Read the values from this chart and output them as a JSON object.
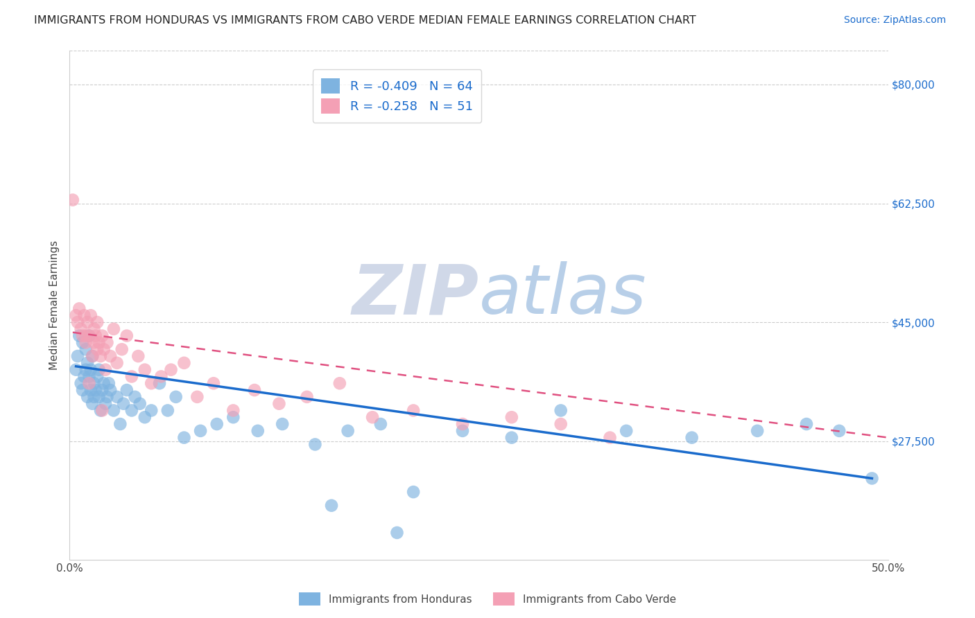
{
  "title": "IMMIGRANTS FROM HONDURAS VS IMMIGRANTS FROM CABO VERDE MEDIAN FEMALE EARNINGS CORRELATION CHART",
  "source": "Source: ZipAtlas.com",
  "xlabel": "",
  "ylabel": "Median Female Earnings",
  "xlim": [
    0.0,
    0.5
  ],
  "ylim": [
    10000,
    85000
  ],
  "yticks": [
    27500,
    45000,
    62500,
    80000
  ],
  "ytick_labels": [
    "$27,500",
    "$45,000",
    "$62,500",
    "$80,000"
  ],
  "xticks": [
    0.0,
    0.1,
    0.2,
    0.3,
    0.4,
    0.5
  ],
  "xtick_labels": [
    "0.0%",
    "",
    "",
    "",
    "",
    "50.0%"
  ],
  "legend_r_honduras": "-0.409",
  "legend_n_honduras": "64",
  "legend_r_caboverde": "-0.258",
  "legend_n_caboverde": "51",
  "legend_label_honduras": "Immigrants from Honduras",
  "legend_label_caboverde": "Immigrants from Cabo Verde",
  "color_honduras": "#7eb3e0",
  "color_caboverde": "#f4a0b5",
  "line_color_honduras": "#1a6bcc",
  "line_color_caboverde": "#e05080",
  "background_color": "#ffffff",
  "grid_color": "#cccccc",
  "watermark_zip": "ZIP",
  "watermark_atlas": "atlas",
  "watermark_color": "#c8ddf0",
  "title_color": "#222222",
  "source_color": "#1a6bcc",
  "axis_label_color": "#444444",
  "ytick_color": "#1a6bcc",
  "honduras_x": [
    0.004,
    0.005,
    0.006,
    0.007,
    0.008,
    0.008,
    0.009,
    0.01,
    0.01,
    0.011,
    0.011,
    0.012,
    0.012,
    0.013,
    0.013,
    0.014,
    0.014,
    0.015,
    0.015,
    0.016,
    0.017,
    0.018,
    0.018,
    0.019,
    0.02,
    0.021,
    0.022,
    0.023,
    0.024,
    0.025,
    0.027,
    0.029,
    0.031,
    0.033,
    0.035,
    0.038,
    0.04,
    0.043,
    0.046,
    0.05,
    0.055,
    0.06,
    0.065,
    0.07,
    0.08,
    0.09,
    0.1,
    0.115,
    0.13,
    0.15,
    0.17,
    0.19,
    0.21,
    0.24,
    0.27,
    0.3,
    0.34,
    0.38,
    0.42,
    0.45,
    0.47,
    0.49,
    0.2,
    0.16
  ],
  "honduras_y": [
    38000,
    40000,
    43000,
    36000,
    42000,
    35000,
    37000,
    41000,
    38000,
    39000,
    34000,
    43000,
    37000,
    35000,
    38000,
    33000,
    40000,
    36000,
    34000,
    35000,
    37000,
    34000,
    38000,
    32000,
    35000,
    36000,
    33000,
    34000,
    36000,
    35000,
    32000,
    34000,
    30000,
    33000,
    35000,
    32000,
    34000,
    33000,
    31000,
    32000,
    36000,
    32000,
    34000,
    28000,
    29000,
    30000,
    31000,
    29000,
    30000,
    27000,
    29000,
    30000,
    20000,
    29000,
    28000,
    32000,
    29000,
    28000,
    29000,
    30000,
    29000,
    22000,
    14000,
    18000
  ],
  "caboverde_x": [
    0.002,
    0.004,
    0.005,
    0.006,
    0.007,
    0.008,
    0.009,
    0.01,
    0.011,
    0.012,
    0.013,
    0.014,
    0.015,
    0.015,
    0.016,
    0.017,
    0.017,
    0.018,
    0.019,
    0.02,
    0.021,
    0.022,
    0.023,
    0.025,
    0.027,
    0.029,
    0.032,
    0.035,
    0.038,
    0.042,
    0.046,
    0.05,
    0.056,
    0.062,
    0.07,
    0.078,
    0.088,
    0.1,
    0.113,
    0.128,
    0.145,
    0.165,
    0.185,
    0.21,
    0.24,
    0.27,
    0.3,
    0.33,
    0.01,
    0.012,
    0.02
  ],
  "caboverde_y": [
    63000,
    46000,
    45000,
    47000,
    44000,
    43000,
    46000,
    42000,
    45000,
    43000,
    46000,
    40000,
    44000,
    42000,
    43000,
    41000,
    45000,
    42000,
    40000,
    43000,
    41000,
    38000,
    42000,
    40000,
    44000,
    39000,
    41000,
    43000,
    37000,
    40000,
    38000,
    36000,
    37000,
    38000,
    39000,
    34000,
    36000,
    32000,
    35000,
    33000,
    34000,
    36000,
    31000,
    32000,
    30000,
    31000,
    30000,
    28000,
    43000,
    36000,
    32000
  ],
  "honduras_line_x": [
    0.004,
    0.49
  ],
  "honduras_line_y": [
    38500,
    22000
  ],
  "caboverde_line_x": [
    0.002,
    0.5
  ],
  "caboverde_line_y": [
    43500,
    28000
  ]
}
